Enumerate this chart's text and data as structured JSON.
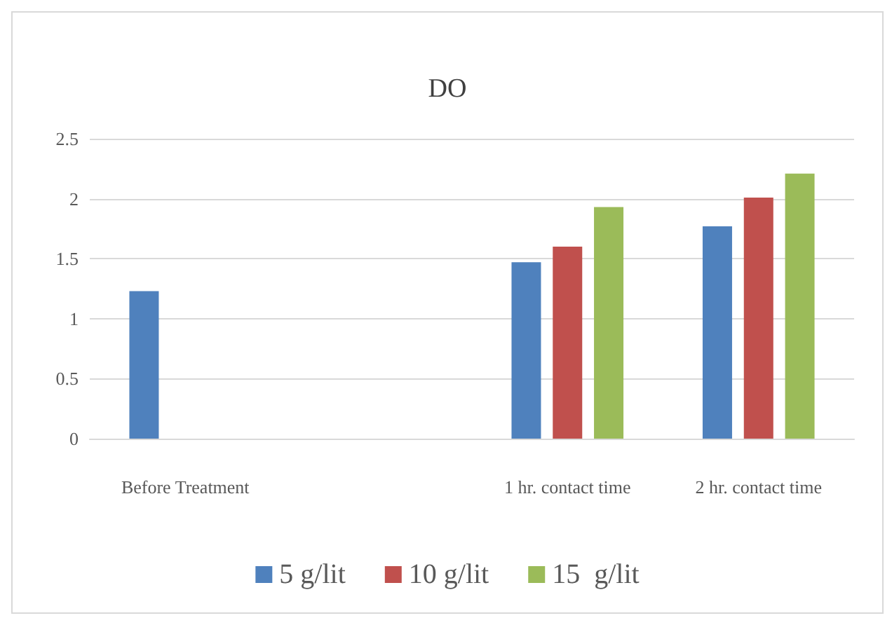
{
  "chart_data": {
    "type": "bar",
    "title": "DO",
    "categories": [
      "Before Treatment",
      null,
      "1 hr. contact time",
      "2 hr. contact time"
    ],
    "series": [
      {
        "name": "5 g/lit",
        "color": "#4f81bd",
        "values": [
          1.23,
          null,
          1.47,
          1.77
        ]
      },
      {
        "name": "10 g/lit",
        "color": "#c0504d",
        "values": [
          null,
          null,
          1.6,
          2.01
        ]
      },
      {
        "name": "15  g/lit",
        "color": "#9bbb59",
        "values": [
          null,
          null,
          1.93,
          2.21
        ]
      }
    ],
    "ylim": [
      0,
      2.5
    ],
    "yticks": [
      0,
      0.5,
      1,
      1.5,
      2,
      2.5
    ],
    "grid": "y",
    "legend": "bottom"
  }
}
